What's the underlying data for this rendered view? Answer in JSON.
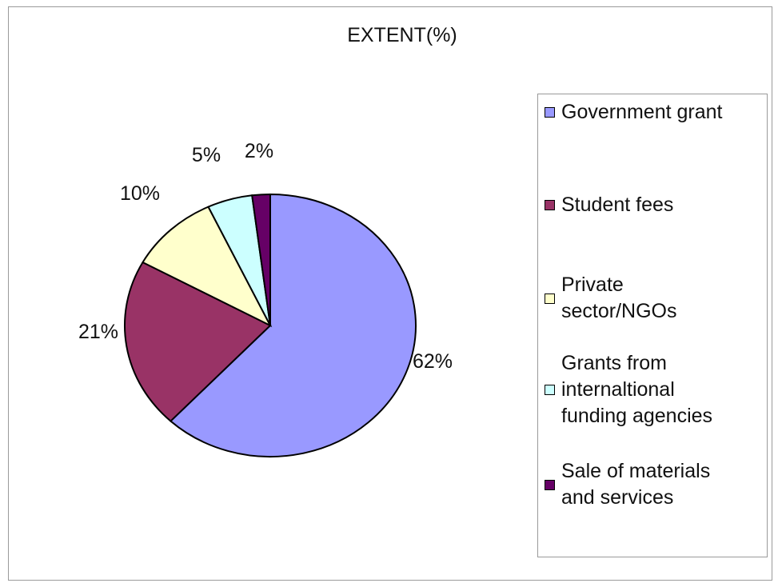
{
  "chart_data": {
    "type": "pie",
    "title": "EXTENT(%)",
    "categories": [
      "Government grant",
      "Student fees",
      "Private\nsector/NGOs",
      "Grants from\ninternaltional\nfunding agencies",
      "Sale of materials\nand services"
    ],
    "values": [
      62,
      21,
      10,
      5,
      2
    ],
    "labels": [
      "62%",
      "21%",
      "10%",
      "5%",
      "2%"
    ],
    "colors": [
      "#9999ff",
      "#993366",
      "#ffffcc",
      "#ccffff",
      "#660066"
    ],
    "legend_position": "right"
  }
}
